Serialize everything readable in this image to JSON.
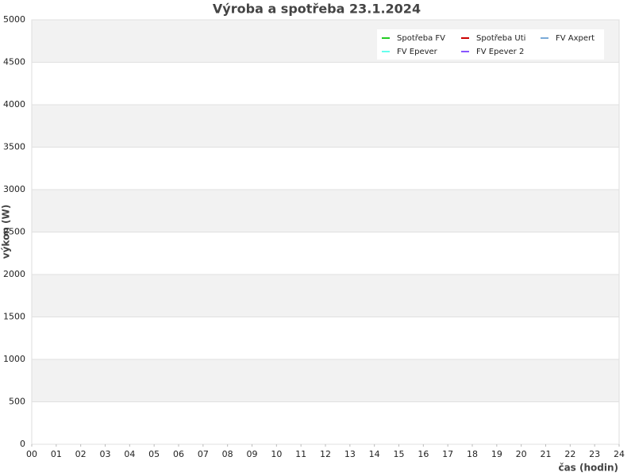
{
  "chart_data": {
    "type": "line",
    "title": "Výroba a spotřeba 23.1.2024",
    "xlabel": "čas (hodin)",
    "ylabel": "výkon (W)",
    "x": [],
    "series": [
      {
        "name": "Spotřeba FV",
        "color": "#22cc22",
        "values": []
      },
      {
        "name": "FV Epever",
        "color": "#66ffee",
        "values": []
      },
      {
        "name": "Spotřeba Uti",
        "color": "#cc0000",
        "values": []
      },
      {
        "name": "FV Epever 2",
        "color": "#8855ff",
        "values": []
      },
      {
        "name": "FV Axpert",
        "color": "#7aaad8",
        "values": []
      }
    ],
    "xlim": [
      0,
      24
    ],
    "xticks": [
      {
        "value": 0,
        "label": "00"
      },
      {
        "value": 1,
        "label": "01"
      },
      {
        "value": 2,
        "label": "02"
      },
      {
        "value": 3,
        "label": "03"
      },
      {
        "value": 4,
        "label": "04"
      },
      {
        "value": 5,
        "label": "05"
      },
      {
        "value": 6,
        "label": "06"
      },
      {
        "value": 7,
        "label": "07"
      },
      {
        "value": 8,
        "label": "08"
      },
      {
        "value": 9,
        "label": "09"
      },
      10,
      11,
      12,
      13,
      14,
      15,
      16,
      17,
      18,
      19,
      20,
      21,
      22,
      23,
      24
    ],
    "ylim": [
      0,
      5000
    ],
    "yticks": [
      0,
      500,
      1000,
      1500,
      2000,
      2500,
      3000,
      3500,
      4000,
      4500,
      5000
    ],
    "grid": true,
    "legend": "upper right"
  }
}
